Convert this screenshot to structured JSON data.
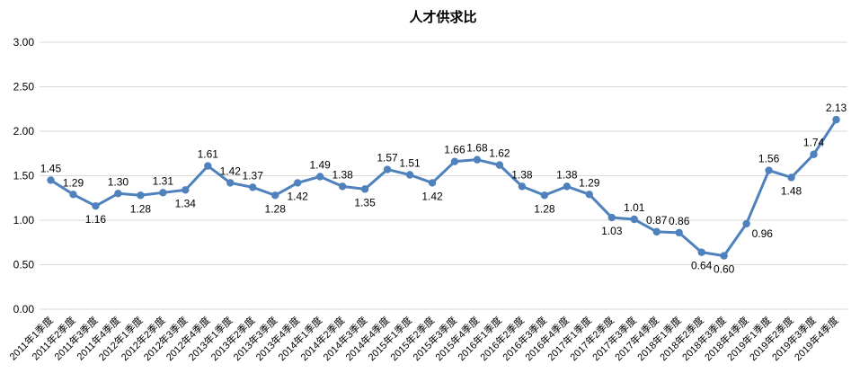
{
  "chart_data": {
    "type": "line",
    "title": "人才供求比",
    "categories": [
      "2011年1季度",
      "2011年2季度",
      "2011年3季度",
      "2011年4季度",
      "2012年1季度",
      "2012年2季度",
      "2012年3季度",
      "2012年4季度",
      "2013年1季度",
      "2013年2季度",
      "2013年3季度",
      "2013年4季度",
      "2014年1季度",
      "2014年2季度",
      "2014年3季度",
      "2014年4季度",
      "2015年1季度",
      "2015年2季度",
      "2015年3季度",
      "2015年4季度",
      "2016年1季度",
      "2016年2季度",
      "2016年3季度",
      "2016年4季度",
      "2017年1季度",
      "2017年2季度",
      "2017年3季度",
      "2017年4季度",
      "2018年1季度",
      "2018年2季度",
      "2018年3季度",
      "2018年4季度",
      "2019年1季度",
      "2019年2季度",
      "2019年3季度",
      "2019年4季度"
    ],
    "series": [
      {
        "name": "人才供求比",
        "values": [
          1.45,
          1.29,
          1.16,
          1.3,
          1.28,
          1.31,
          1.34,
          1.61,
          1.42,
          1.37,
          1.28,
          1.42,
          1.49,
          1.38,
          1.35,
          1.57,
          1.51,
          1.42,
          1.66,
          1.68,
          1.62,
          1.38,
          1.28,
          1.38,
          1.29,
          1.03,
          1.01,
          0.87,
          0.86,
          0.64,
          0.6,
          0.96,
          1.56,
          1.48,
          1.74,
          2.13
        ],
        "color": "#4F81BD"
      }
    ],
    "data_label_positions": [
      "above",
      "above",
      "below",
      "above",
      "below",
      "above",
      "below",
      "above",
      "above",
      "above",
      "below",
      "below",
      "above",
      "above",
      "below",
      "above",
      "above",
      "below",
      "above",
      "above",
      "above",
      "above",
      "below",
      "above",
      "above",
      "below",
      "above",
      "above",
      "above",
      "below",
      "below",
      "right",
      "above",
      "below",
      "above",
      "above"
    ],
    "ylim": [
      0,
      3
    ],
    "yticks": [
      {
        "value": 0.0,
        "label": "0.00"
      },
      {
        "value": 0.5,
        "label": "0.50"
      },
      {
        "value": 1.0,
        "label": "1.00"
      },
      {
        "value": 1.5,
        "label": "1.50"
      },
      {
        "value": 2.0,
        "label": "2.00"
      },
      {
        "value": 2.5,
        "label": "2.50"
      },
      {
        "value": 3.0,
        "label": "3.00"
      }
    ],
    "grid": true,
    "legend": "none",
    "gridline_color": "#D9D9D9",
    "text_color": "#000000",
    "background_color": "#FFFFFF"
  }
}
